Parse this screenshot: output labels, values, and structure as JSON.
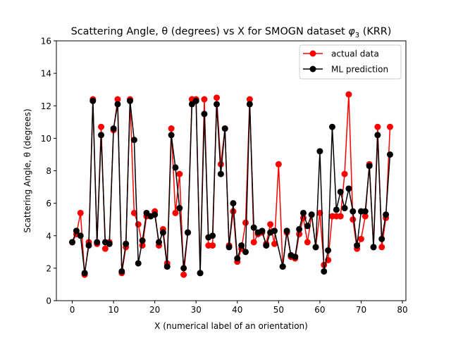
{
  "chart_data": {
    "type": "line",
    "title": "Scattering Angle, θ (degrees) vs X for SMOGN dataset φ3 (KRR)",
    "title_prefix": "Scattering Angle, θ (degrees) vs X for SMOGN dataset ",
    "title_symbol": "φ",
    "title_subscript": "3",
    "title_suffix": " (KRR)",
    "xlabel": "X (numerical label of an orientation)",
    "ylabel": "Scattering Angle, θ (degrees)",
    "xlim": [
      -3.85,
      80.85
    ],
    "ylim": [
      0,
      16
    ],
    "xticks": [
      0,
      10,
      20,
      30,
      40,
      50,
      60,
      70,
      80
    ],
    "yticks": [
      0,
      2,
      4,
      6,
      8,
      10,
      12,
      14,
      16
    ],
    "grid": false,
    "legend_position": "top-right",
    "series": [
      {
        "name": "actual data",
        "color": "#ff0000",
        "marker": "circle",
        "values": [
          3.6,
          4.1,
          5.4,
          1.6,
          3.6,
          12.4,
          3.5,
          10.7,
          3.2,
          3.6,
          10.5,
          12.4,
          1.7,
          3.3,
          12.4,
          5.4,
          4.7,
          3.4,
          5.2,
          5.2,
          5.5,
          3.4,
          4.4,
          2.3,
          10.6,
          5.4,
          7.8,
          1.6,
          4.2,
          12.4,
          12.4,
          1.7,
          12.4,
          3.4,
          3.4,
          12.5,
          8.4,
          10.6,
          3.4,
          5.5,
          2.4,
          3.2,
          4.8,
          12.4,
          3.6,
          4.1,
          4.2,
          3.5,
          4.7,
          3.5,
          8.4,
          2.1,
          4.2,
          2.7,
          2.6,
          4.1,
          5.1,
          3.6,
          5.3,
          3.3,
          5.4,
          2.2,
          2.5,
          5.2,
          5.2,
          5.2,
          7.8,
          12.7,
          5.0,
          3.2,
          3.8,
          5.2,
          8.4,
          3.3,
          10.7,
          3.3,
          5.1,
          10.7
        ]
      },
      {
        "name": "ML prediction",
        "color": "#000000",
        "marker": "circle",
        "values": [
          3.6,
          4.3,
          4.0,
          1.7,
          3.4,
          12.3,
          3.6,
          10.2,
          3.6,
          3.5,
          10.6,
          12.1,
          1.8,
          3.5,
          12.3,
          9.9,
          2.3,
          3.7,
          5.4,
          5.2,
          5.3,
          3.6,
          4.2,
          2.1,
          10.2,
          8.2,
          5.7,
          2.0,
          4.2,
          12.1,
          12.3,
          1.7,
          11.5,
          3.9,
          4.0,
          12.1,
          7.8,
          10.6,
          3.3,
          6.0,
          2.6,
          3.4,
          3.0,
          12.1,
          4.5,
          4.2,
          4.3,
          3.4,
          4.2,
          4.3,
          2.1,
          4.3,
          2.8,
          2.7,
          4.4,
          5.4,
          4.6,
          5.3,
          3.3,
          9.2,
          1.8,
          3.1,
          10.7,
          5.6,
          6.7,
          5.7,
          6.9,
          5.5,
          3.4,
          5.5,
          5.5,
          8.3,
          3.3,
          10.2,
          3.8,
          5.3,
          9.0
        ],
        "x_values": [
          0,
          1,
          2,
          3,
          4,
          5,
          6,
          7,
          8,
          9,
          10,
          11,
          12,
          13,
          14,
          15,
          16,
          17,
          18,
          19,
          20,
          21,
          22,
          23,
          24,
          25,
          26,
          27,
          28,
          29,
          30,
          31,
          32,
          33,
          34,
          35,
          36,
          37,
          38,
          39,
          40,
          41,
          42,
          43,
          44,
          45,
          46,
          47,
          48,
          49,
          51,
          52,
          53,
          54,
          55,
          56,
          57,
          58,
          59,
          60,
          61,
          62,
          63,
          64,
          65,
          66,
          67,
          68,
          69,
          70,
          71,
          72,
          73,
          74,
          75,
          76,
          77
        ]
      }
    ]
  }
}
